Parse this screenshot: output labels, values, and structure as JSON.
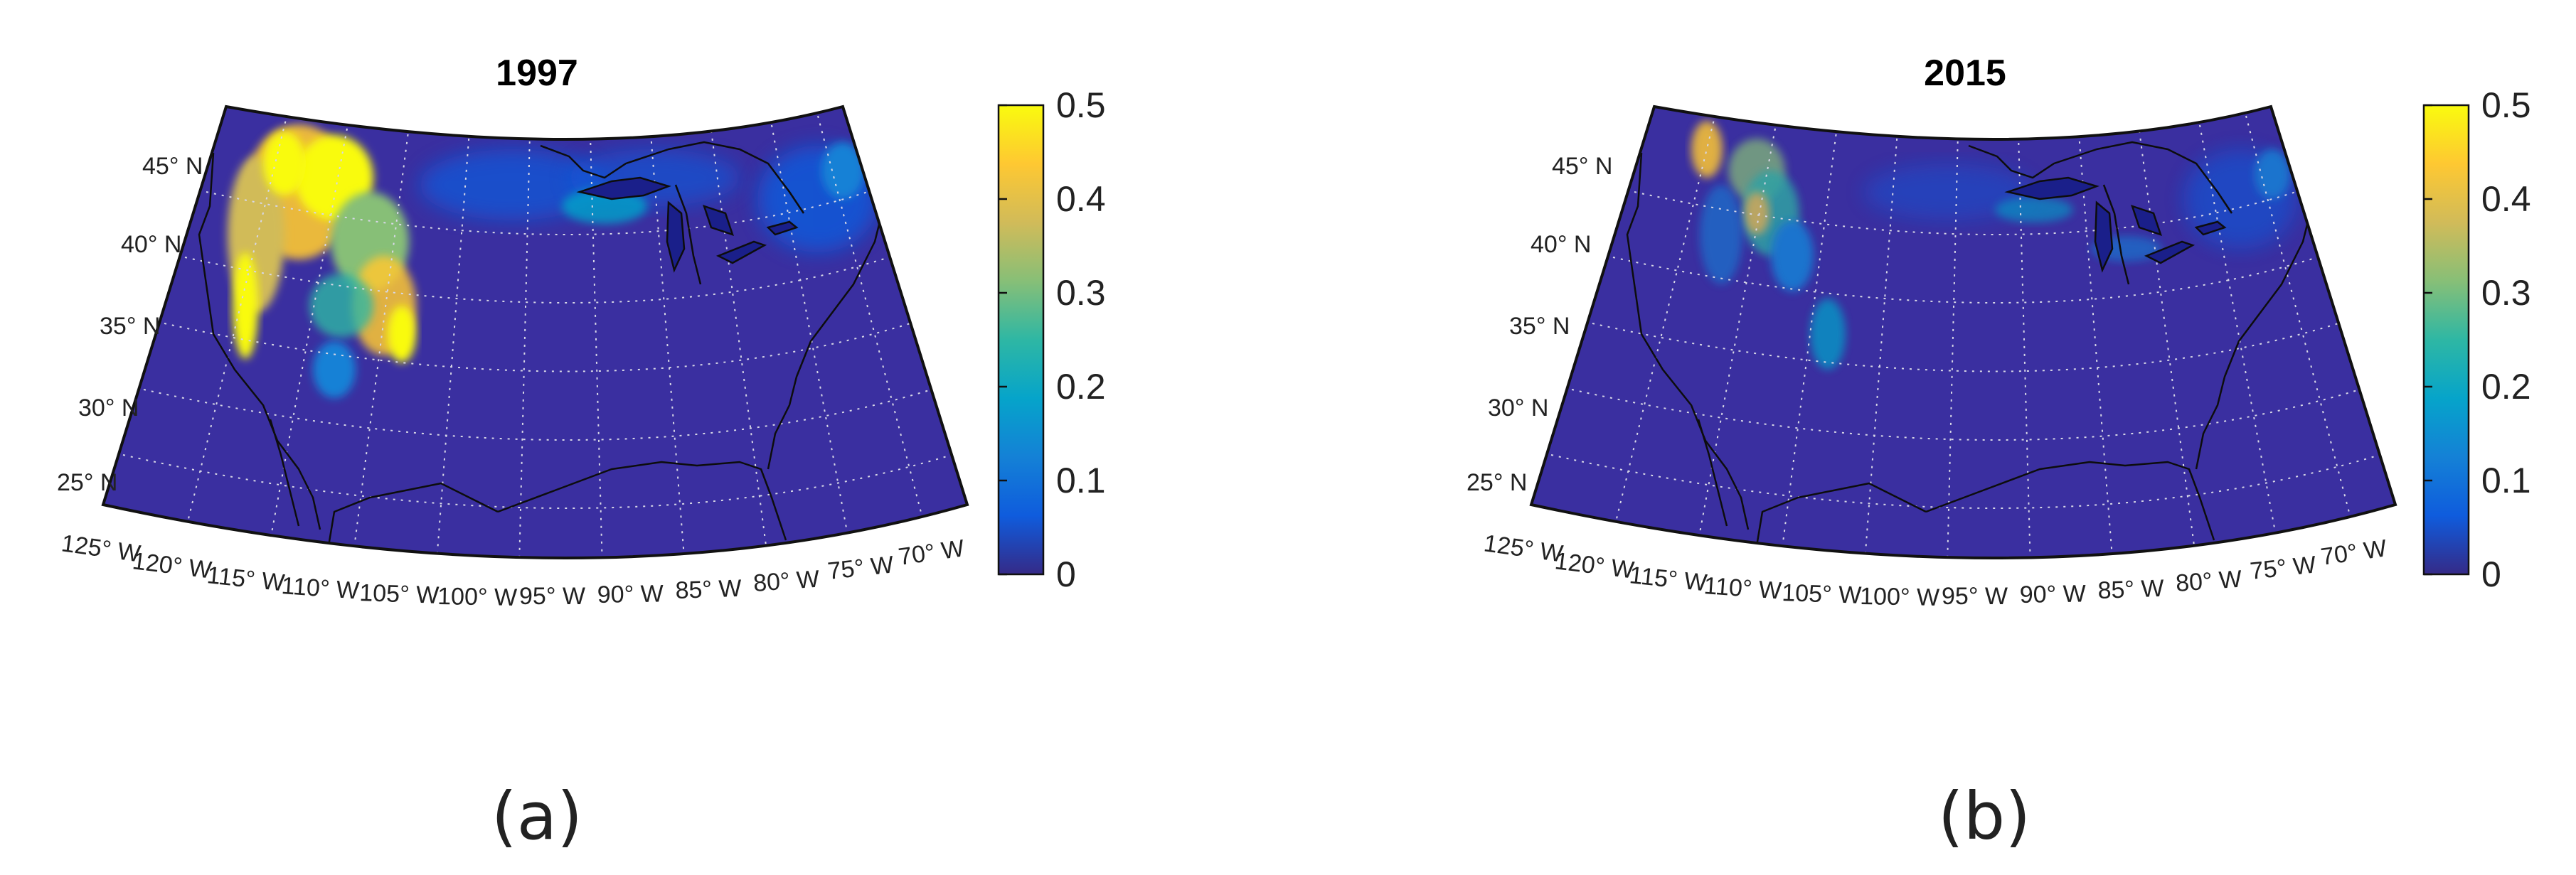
{
  "panels": [
    {
      "title": "1997",
      "caption": "(a)",
      "intensity": "high",
      "colorbar_ticks": [
        "0",
        "0.1",
        "0.2",
        "0.3",
        "0.4",
        "0.5"
      ],
      "lat_labels": [
        "25° N",
        "30° N",
        "35° N",
        "40° N",
        "45° N"
      ],
      "lon_labels": [
        "125° W",
        "120° W",
        "115° W",
        "110° W",
        "105° W",
        "100° W",
        "95° W",
        "90° W",
        "85° W",
        "80° W",
        "75° W",
        "70° W"
      ]
    },
    {
      "title": "2015",
      "caption": "(b)",
      "intensity": "low",
      "colorbar_ticks": [
        "0",
        "0.1",
        "0.2",
        "0.3",
        "0.4",
        "0.5"
      ],
      "lat_labels": [
        "25° N",
        "30° N",
        "35° N",
        "40° N",
        "45° N"
      ],
      "lon_labels": [
        "125° W",
        "120° W",
        "115° W",
        "110° W",
        "105° W",
        "100° W",
        "95° W",
        "90° W",
        "85° W",
        "80° W",
        "75° W",
        "70° W"
      ]
    }
  ],
  "colormap": {
    "name": "parula",
    "stops": [
      "#352a87",
      "#0f5cdd",
      "#1481d6",
      "#06a4ca",
      "#2eb7a4",
      "#87bf77",
      "#d1bb59",
      "#fec832",
      "#f9fb0e"
    ],
    "background": "#3a2fa0",
    "min": 0,
    "max": 0.5
  }
}
